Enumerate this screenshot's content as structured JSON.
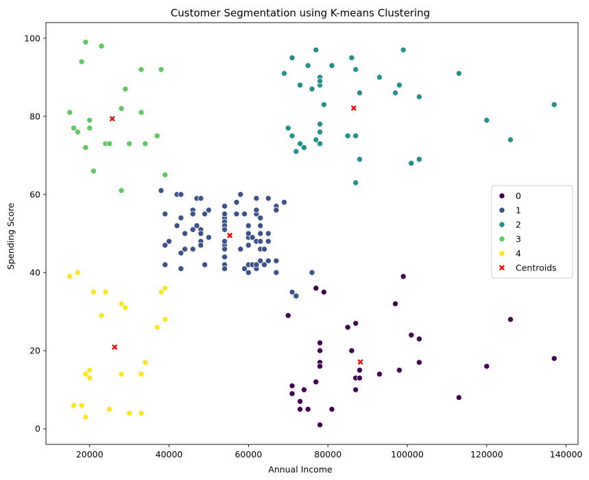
{
  "chart_data": {
    "type": "scatter",
    "title": "Customer Segmentation using K-means Clustering",
    "xlabel": "Annual Income",
    "ylabel": "Spending Score",
    "xlim": [
      9000,
      143000
    ],
    "ylim": [
      -4,
      104
    ],
    "xticks": [
      20000,
      40000,
      60000,
      80000,
      100000,
      120000,
      140000
    ],
    "yticks": [
      0,
      20,
      40,
      60,
      80,
      100
    ],
    "grid": false,
    "legend_position": "center-right",
    "series": [
      {
        "name": "0",
        "color": "#440154",
        "points": [
          [
            70000,
            29
          ],
          [
            71000,
            11
          ],
          [
            71000,
            9
          ],
          [
            73000,
            5
          ],
          [
            73000,
            7
          ],
          [
            74000,
            10
          ],
          [
            75000,
            5
          ],
          [
            77000,
            12
          ],
          [
            77000,
            36
          ],
          [
            78000,
            22
          ],
          [
            78000,
            17
          ],
          [
            78000,
            20
          ],
          [
            78000,
            16
          ],
          [
            78000,
            1
          ],
          [
            79000,
            35
          ],
          [
            81000,
            5
          ],
          [
            85000,
            26
          ],
          [
            86000,
            20
          ],
          [
            87000,
            27
          ],
          [
            87000,
            13
          ],
          [
            87000,
            10
          ],
          [
            88000,
            13
          ],
          [
            88000,
            15
          ],
          [
            93000,
            14
          ],
          [
            97000,
            32
          ],
          [
            98000,
            15
          ],
          [
            99000,
            39
          ],
          [
            101000,
            24
          ],
          [
            103000,
            17
          ],
          [
            103000,
            23
          ],
          [
            113000,
            8
          ],
          [
            120000,
            16
          ],
          [
            126000,
            28
          ],
          [
            137000,
            18
          ]
        ]
      },
      {
        "name": "1",
        "color": "#3b528b",
        "points": [
          [
            38000,
            61
          ],
          [
            39000,
            55
          ],
          [
            39000,
            47
          ],
          [
            39000,
            42
          ],
          [
            40000,
            48
          ],
          [
            42000,
            52
          ],
          [
            42000,
            60
          ],
          [
            43000,
            60
          ],
          [
            43000,
            54
          ],
          [
            43000,
            45
          ],
          [
            43000,
            41
          ],
          [
            44000,
            50
          ],
          [
            44000,
            46
          ],
          [
            46000,
            51
          ],
          [
            46000,
            46
          ],
          [
            46000,
            56
          ],
          [
            46000,
            55
          ],
          [
            47000,
            52
          ],
          [
            47000,
            59
          ],
          [
            48000,
            51
          ],
          [
            48000,
            59
          ],
          [
            48000,
            50
          ],
          [
            48000,
            48
          ],
          [
            48000,
            47
          ],
          [
            49000,
            55
          ],
          [
            49000,
            42
          ],
          [
            50000,
            49
          ],
          [
            50000,
            56
          ],
          [
            54000,
            47
          ],
          [
            54000,
            54
          ],
          [
            54000,
            53
          ],
          [
            54000,
            48
          ],
          [
            54000,
            52
          ],
          [
            54000,
            42
          ],
          [
            54000,
            51
          ],
          [
            54000,
            55
          ],
          [
            54000,
            41
          ],
          [
            54000,
            44
          ],
          [
            54000,
            57
          ],
          [
            54000,
            46
          ],
          [
            57000,
            58
          ],
          [
            57000,
            55
          ],
          [
            58000,
            60
          ],
          [
            58000,
            46
          ],
          [
            59000,
            55
          ],
          [
            59000,
            41
          ],
          [
            60000,
            49
          ],
          [
            60000,
            40
          ],
          [
            60000,
            42
          ],
          [
            60000,
            52
          ],
          [
            60000,
            47
          ],
          [
            60000,
            50
          ],
          [
            61000,
            42
          ],
          [
            61000,
            49
          ],
          [
            62000,
            41
          ],
          [
            62000,
            48
          ],
          [
            62000,
            59
          ],
          [
            62000,
            55
          ],
          [
            62000,
            56
          ],
          [
            62000,
            42
          ],
          [
            63000,
            50
          ],
          [
            63000,
            46
          ],
          [
            63000,
            43
          ],
          [
            63000,
            48
          ],
          [
            63000,
            52
          ],
          [
            63000,
            54
          ],
          [
            64000,
            42
          ],
          [
            64000,
            46
          ],
          [
            65000,
            48
          ],
          [
            65000,
            50
          ],
          [
            65000,
            43
          ],
          [
            65000,
            59
          ],
          [
            67000,
            43
          ],
          [
            67000,
            57
          ],
          [
            67000,
            56
          ],
          [
            67000,
            40
          ],
          [
            69000,
            58
          ],
          [
            76000,
            40
          ],
          [
            71000,
            35
          ],
          [
            72000,
            34
          ]
        ]
      },
      {
        "name": "2",
        "color": "#21918c",
        "points": [
          [
            69000,
            91
          ],
          [
            70000,
            77
          ],
          [
            71000,
            95
          ],
          [
            71000,
            75
          ],
          [
            72000,
            71
          ],
          [
            73000,
            88
          ],
          [
            73000,
            73
          ],
          [
            74000,
            72
          ],
          [
            75000,
            93
          ],
          [
            76000,
            87
          ],
          [
            77000,
            97
          ],
          [
            77000,
            74
          ],
          [
            78000,
            90
          ],
          [
            78000,
            88
          ],
          [
            78000,
            76
          ],
          [
            78000,
            89
          ],
          [
            78000,
            78
          ],
          [
            78000,
            73
          ],
          [
            79000,
            83
          ],
          [
            81000,
            93
          ],
          [
            85000,
            75
          ],
          [
            86000,
            95
          ],
          [
            87000,
            63
          ],
          [
            87000,
            75
          ],
          [
            87000,
            92
          ],
          [
            88000,
            86
          ],
          [
            88000,
            69
          ],
          [
            93000,
            90
          ],
          [
            97000,
            86
          ],
          [
            98000,
            88
          ],
          [
            99000,
            97
          ],
          [
            101000,
            68
          ],
          [
            103000,
            85
          ],
          [
            103000,
            69
          ],
          [
            113000,
            91
          ],
          [
            120000,
            79
          ],
          [
            126000,
            74
          ],
          [
            137000,
            83
          ]
        ]
      },
      {
        "name": "3",
        "color": "#5ec962",
        "points": [
          [
            15000,
            81
          ],
          [
            16000,
            77
          ],
          [
            17000,
            76
          ],
          [
            18000,
            94
          ],
          [
            19000,
            99
          ],
          [
            19000,
            72
          ],
          [
            20000,
            77
          ],
          [
            20000,
            79
          ],
          [
            21000,
            66
          ],
          [
            23000,
            98
          ],
          [
            24000,
            73
          ],
          [
            25000,
            73
          ],
          [
            28000,
            82
          ],
          [
            28000,
            61
          ],
          [
            29000,
            87
          ],
          [
            30000,
            73
          ],
          [
            33000,
            92
          ],
          [
            33000,
            81
          ],
          [
            34000,
            73
          ],
          [
            37000,
            75
          ],
          [
            38000,
            92
          ],
          [
            39000,
            65
          ]
        ]
      },
      {
        "name": "4",
        "color": "#fde725",
        "points": [
          [
            15000,
            39
          ],
          [
            16000,
            6
          ],
          [
            17000,
            40
          ],
          [
            18000,
            6
          ],
          [
            19000,
            3
          ],
          [
            19000,
            14
          ],
          [
            20000,
            15
          ],
          [
            20000,
            13
          ],
          [
            21000,
            35
          ],
          [
            23000,
            29
          ],
          [
            24000,
            35
          ],
          [
            25000,
            5
          ],
          [
            28000,
            14
          ],
          [
            28000,
            32
          ],
          [
            29000,
            31
          ],
          [
            30000,
            4
          ],
          [
            33000,
            4
          ],
          [
            33000,
            14
          ],
          [
            34000,
            17
          ],
          [
            37000,
            26
          ],
          [
            38000,
            35
          ],
          [
            39000,
            36
          ],
          [
            39000,
            28
          ]
        ]
      }
    ],
    "centroids": {
      "name": "Centroids",
      "color": "#ff0000",
      "points": [
        [
          88200,
          17.1
        ],
        [
          55300,
          49.5
        ],
        [
          86500,
          82.1
        ],
        [
          25700,
          79.4
        ],
        [
          26300,
          20.9
        ]
      ]
    },
    "legend": [
      "0",
      "1",
      "2",
      "3",
      "4",
      "Centroids"
    ]
  }
}
